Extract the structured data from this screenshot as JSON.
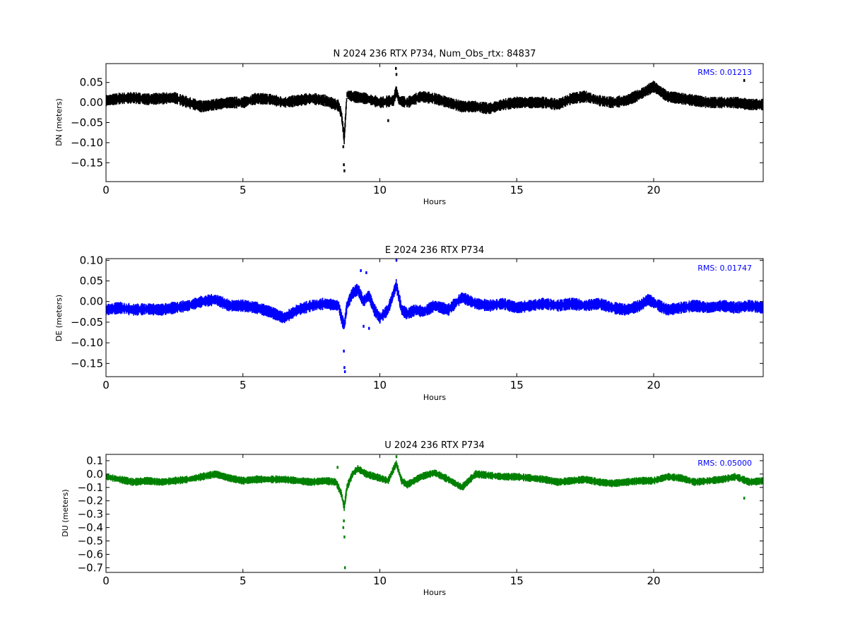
{
  "chart_data": [
    {
      "type": "scatter",
      "title": "N 2024 236 RTX  P734, Num_Obs_rtx: 84837",
      "xlabel": "Hours",
      "ylabel": "DN (meters)",
      "xlim": [
        0,
        24
      ],
      "ylim": [
        -0.197,
        0.097
      ],
      "xticks": [
        0,
        5,
        10,
        15,
        20
      ],
      "yticks": [
        0.05,
        0.0,
        -0.05,
        -0.1,
        -0.15
      ],
      "ytick_labels": [
        "0.05",
        "0.00",
        "−0.05",
        "−0.10",
        "−0.15"
      ],
      "rms_label": "RMS:  0.01213",
      "rms_color": "#0000ff",
      "series": [
        {
          "color": "#000000",
          "x": [
            0,
            0.5,
            1,
            1.5,
            2,
            2.5,
            3,
            3.5,
            4,
            4.5,
            5,
            5.5,
            6,
            6.5,
            7,
            7.5,
            8,
            8.5,
            8.6,
            8.7,
            8.8,
            9,
            9.5,
            10,
            10.5,
            10.6,
            10.7,
            11,
            11.5,
            12,
            12.5,
            13,
            13.5,
            14,
            14.5,
            15,
            15.5,
            16,
            16.5,
            17,
            17.5,
            18,
            18.5,
            19,
            19.5,
            20,
            20.5,
            21,
            21.5,
            22,
            22.5,
            23,
            23.5,
            24
          ],
          "y": [
            0.005,
            0.01,
            0.012,
            0.008,
            0.01,
            0.012,
            0.0,
            -0.01,
            -0.005,
            0.0,
            0.0,
            0.01,
            0.008,
            0.0,
            0.005,
            0.01,
            0.005,
            -0.008,
            -0.03,
            -0.09,
            0.02,
            0.015,
            0.01,
            0.0,
            0.005,
            0.03,
            0.005,
            0.0,
            0.015,
            0.01,
            0.0,
            -0.01,
            -0.01,
            -0.015,
            -0.005,
            0.0,
            0.0,
            0.0,
            -0.005,
            0.01,
            0.015,
            0.005,
            0.0,
            0.005,
            0.02,
            0.04,
            0.015,
            0.01,
            0.005,
            0.0,
            0.0,
            0.0,
            -0.005,
            -0.005
          ],
          "band": 0.02
        }
      ],
      "outliers": [
        {
          "x": 8.68,
          "y": -0.155
        },
        {
          "x": 8.7,
          "y": -0.17
        },
        {
          "x": 8.66,
          "y": -0.11
        },
        {
          "x": 10.58,
          "y": 0.085
        },
        {
          "x": 10.6,
          "y": 0.07
        },
        {
          "x": 23.3,
          "y": 0.055
        },
        {
          "x": 10.3,
          "y": -0.045
        }
      ]
    },
    {
      "type": "scatter",
      "title": "E 2024 236 RTX  P734",
      "xlabel": "Hours",
      "ylabel": "DE (meters)",
      "xlim": [
        0,
        24
      ],
      "ylim": [
        -0.182,
        0.104
      ],
      "xticks": [
        0,
        5,
        10,
        15,
        20
      ],
      "yticks": [
        0.1,
        0.05,
        0.0,
        -0.05,
        -0.1,
        -0.15
      ],
      "ytick_labels": [
        "0.10",
        "0.05",
        "0.00",
        "−0.05",
        "−0.10",
        "−0.15"
      ],
      "rms_label": "RMS:  0.01747",
      "rms_color": "#0000ff",
      "series": [
        {
          "color": "#0000ff",
          "x": [
            0,
            0.5,
            1,
            1.5,
            2,
            2.5,
            3,
            3.5,
            4,
            4.5,
            5,
            5.5,
            6,
            6.5,
            7,
            7.5,
            8,
            8.5,
            8.6,
            8.7,
            8.8,
            9,
            9.2,
            9.4,
            9.6,
            9.8,
            10,
            10.3,
            10.6,
            10.8,
            11,
            11.3,
            11.6,
            12,
            12.5,
            13,
            13.5,
            14,
            14.5,
            15,
            15.5,
            16,
            16.5,
            17,
            17.5,
            18,
            18.5,
            19,
            19.5,
            19.8,
            20.2,
            20.5,
            21,
            21.5,
            22,
            22.5,
            23,
            23.5,
            24
          ],
          "y": [
            -0.02,
            -0.015,
            -0.02,
            -0.018,
            -0.02,
            -0.015,
            -0.01,
            0.0,
            0.005,
            -0.01,
            -0.01,
            -0.015,
            -0.025,
            -0.04,
            -0.02,
            -0.01,
            -0.005,
            -0.01,
            -0.04,
            -0.06,
            -0.01,
            0.02,
            0.03,
            0.0,
            0.015,
            -0.02,
            -0.04,
            -0.02,
            0.04,
            -0.02,
            -0.03,
            -0.02,
            -0.025,
            -0.01,
            -0.02,
            0.01,
            -0.005,
            -0.01,
            -0.005,
            -0.015,
            -0.01,
            -0.005,
            -0.01,
            -0.005,
            -0.01,
            -0.005,
            -0.015,
            -0.02,
            -0.01,
            0.005,
            -0.01,
            -0.02,
            -0.015,
            -0.01,
            -0.015,
            -0.01,
            -0.015,
            -0.01,
            -0.015
          ],
          "band": 0.02
        }
      ],
      "outliers": [
        {
          "x": 8.7,
          "y": -0.16
        },
        {
          "x": 8.72,
          "y": -0.17
        },
        {
          "x": 8.68,
          "y": -0.12
        },
        {
          "x": 9.3,
          "y": 0.075
        },
        {
          "x": 9.5,
          "y": 0.07
        },
        {
          "x": 9.4,
          "y": -0.06
        },
        {
          "x": 9.6,
          "y": -0.065
        },
        {
          "x": 10.6,
          "y": 0.1
        }
      ]
    },
    {
      "type": "scatter",
      "title": "U 2024 236 RTX  P734",
      "xlabel": "Hours",
      "ylabel": "DU (meters)",
      "xlim": [
        0,
        24
      ],
      "ylim": [
        -0.735,
        0.147
      ],
      "xticks": [
        0,
        5,
        10,
        15,
        20
      ],
      "yticks": [
        0.1,
        0.0,
        -0.1,
        -0.2,
        -0.3,
        -0.4,
        -0.5,
        -0.6,
        -0.7
      ],
      "ytick_labels": [
        "0.1",
        "0.0",
        "−0.1",
        "−0.2",
        "−0.3",
        "−0.4",
        "−0.5",
        "−0.6",
        "−0.7"
      ],
      "rms_label": "RMS:  0.05000",
      "rms_color": "#0000ff",
      "series": [
        {
          "color": "#008000",
          "x": [
            0,
            0.5,
            1,
            1.5,
            2,
            2.5,
            3,
            3.5,
            4,
            4.5,
            5,
            5.5,
            6,
            6.5,
            7,
            7.5,
            8,
            8.4,
            8.6,
            8.7,
            8.8,
            9,
            9.2,
            9.5,
            10,
            10.3,
            10.6,
            10.8,
            11,
            11.5,
            12,
            12.5,
            13,
            13.5,
            14,
            14.5,
            15,
            15.5,
            16,
            16.5,
            17,
            17.5,
            18,
            18.5,
            19,
            19.5,
            20,
            20.5,
            21,
            21.5,
            22,
            22.5,
            23,
            23.5,
            24
          ],
          "y": [
            -0.02,
            -0.04,
            -0.06,
            -0.05,
            -0.06,
            -0.05,
            -0.04,
            -0.02,
            0.0,
            -0.03,
            -0.05,
            -0.04,
            -0.04,
            -0.04,
            -0.05,
            -0.06,
            -0.05,
            -0.06,
            -0.15,
            -0.25,
            -0.1,
            0.0,
            0.04,
            0.0,
            -0.03,
            -0.05,
            0.08,
            -0.05,
            -0.08,
            -0.02,
            0.01,
            -0.04,
            -0.1,
            0.0,
            -0.01,
            -0.02,
            -0.02,
            -0.03,
            -0.04,
            -0.06,
            -0.05,
            -0.04,
            -0.06,
            -0.07,
            -0.06,
            -0.05,
            -0.05,
            -0.02,
            -0.03,
            -0.06,
            -0.05,
            -0.04,
            -0.02,
            -0.06,
            -0.05
          ],
          "band": 0.04
        }
      ],
      "outliers": [
        {
          "x": 8.68,
          "y": -0.35
        },
        {
          "x": 8.7,
          "y": -0.47
        },
        {
          "x": 8.72,
          "y": -0.7
        },
        {
          "x": 8.66,
          "y": -0.4
        },
        {
          "x": 8.45,
          "y": 0.05
        },
        {
          "x": 10.6,
          "y": 0.13
        },
        {
          "x": 23.3,
          "y": -0.18
        }
      ]
    }
  ]
}
